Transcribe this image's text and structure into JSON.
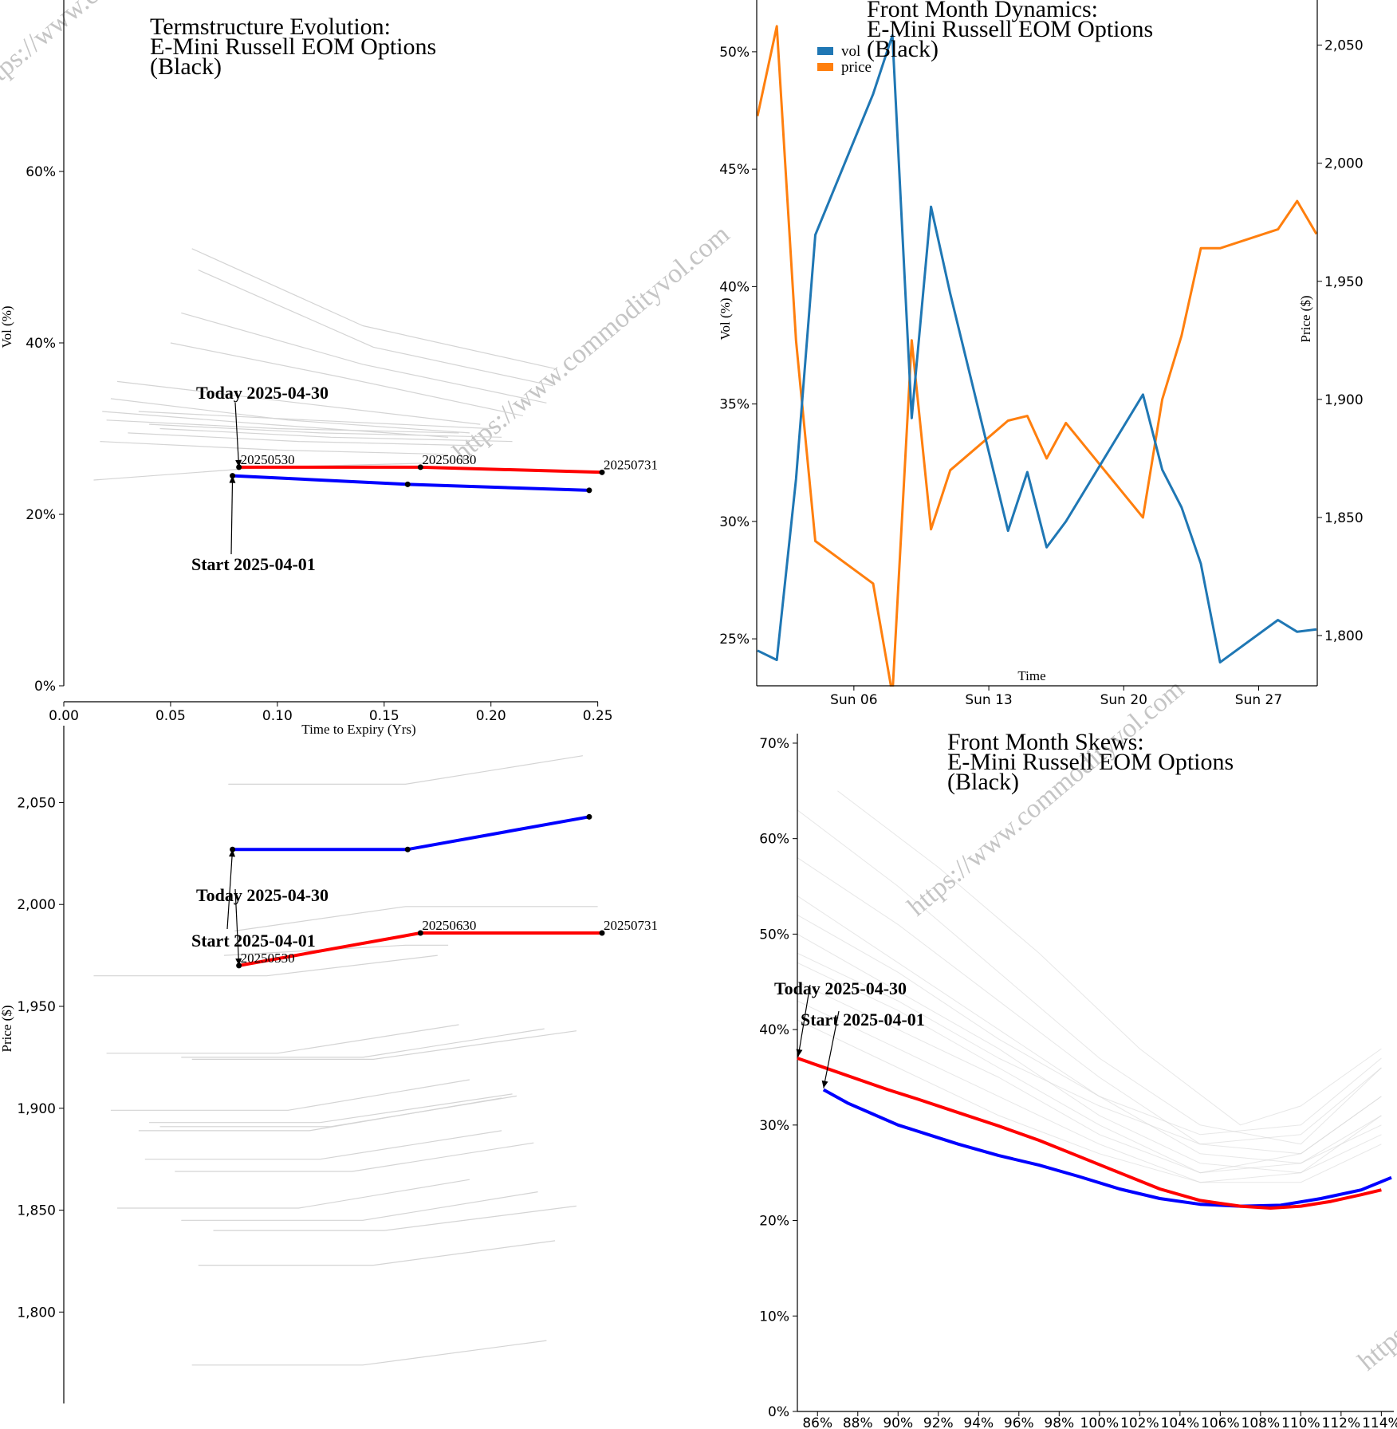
{
  "watermark": "https://www.commodityvol.com",
  "colors": {
    "start": "#0000ff",
    "today": "#ff0000",
    "history": "#d4d4d4",
    "vol": "#1f77b4",
    "price": "#ff7f0e"
  },
  "chart_data": [
    {
      "id": "term_vol",
      "type": "line",
      "title": [
        "Termstructure Evolution:",
        "E-Mini Russell EOM Options",
        "(Black)"
      ],
      "xlabel": "Time to Expiry (Yrs)",
      "ylabel": "Vol (%)",
      "xlim": [
        0,
        0.28
      ],
      "ylim": [
        0,
        80
      ],
      "xticks": [
        0.0,
        0.05,
        0.1,
        0.15,
        0.2,
        0.25
      ],
      "yticks": [
        0,
        20,
        40,
        60
      ],
      "start": {
        "label": "Start 2025-04-01",
        "x": [
          0.079,
          0.161,
          0.246
        ],
        "y": [
          24.5,
          23.5,
          22.8
        ]
      },
      "today": {
        "label": "Today 2025-04-30",
        "x": [
          0.082,
          0.167,
          0.252
        ],
        "y": [
          25.5,
          25.5,
          24.9
        ],
        "point_labels": [
          "20250530",
          "20250630",
          "20250731"
        ]
      },
      "history": [
        {
          "x": [
            0.06,
            0.14,
            0.23
          ],
          "y": [
            51,
            42,
            37
          ]
        },
        {
          "x": [
            0.063,
            0.145,
            0.229
          ],
          "y": [
            48.5,
            39.5,
            35
          ]
        },
        {
          "x": [
            0.055,
            0.14,
            0.226
          ],
          "y": [
            43.5,
            37.5,
            33
          ]
        },
        {
          "x": [
            0.05,
            0.13,
            0.215
          ],
          "y": [
            40,
            36,
            31.5
          ]
        },
        {
          "x": [
            0.025,
            0.11,
            0.195
          ],
          "y": [
            35.5,
            33,
            30.5
          ]
        },
        {
          "x": [
            0.022,
            0.105,
            0.19
          ],
          "y": [
            33.5,
            31,
            29.5
          ]
        },
        {
          "x": [
            0.02,
            0.1,
            0.185
          ],
          "y": [
            31,
            30,
            29.5
          ]
        },
        {
          "x": [
            0.018,
            0.095,
            0.18
          ],
          "y": [
            32,
            30.5,
            29
          ]
        },
        {
          "x": [
            0.035,
            0.115,
            0.2
          ],
          "y": [
            32,
            31,
            30
          ]
        },
        {
          "x": [
            0.04,
            0.12,
            0.205
          ],
          "y": [
            30.5,
            29.5,
            29
          ]
        },
        {
          "x": [
            0.045,
            0.125,
            0.21
          ],
          "y": [
            30,
            29,
            28.5
          ]
        },
        {
          "x": [
            0.03,
            0.11,
            0.195
          ],
          "y": [
            29.5,
            28.5,
            28
          ]
        },
        {
          "x": [
            0.017,
            0.1,
            0.18
          ],
          "y": [
            28.5,
            27.5,
            27
          ]
        },
        {
          "x": [
            0.014,
            0.095,
            0.175
          ],
          "y": [
            24,
            25.5,
            26
          ]
        }
      ]
    },
    {
      "id": "term_price",
      "type": "line",
      "ylabel": "Price ($)",
      "xlim": [
        0,
        0.28
      ],
      "ylim": [
        1770,
        2085
      ],
      "yticks": [
        1800,
        1850,
        1900,
        1950,
        2000,
        2050
      ],
      "start": {
        "label": "Start 2025-04-01",
        "x": [
          0.079,
          0.161,
          0.246
        ],
        "y": [
          2027,
          2027,
          2043
        ]
      },
      "today": {
        "label": "Today 2025-04-30",
        "x": [
          0.082,
          0.167,
          0.252
        ],
        "y": [
          1970,
          1986,
          1986
        ],
        "point_labels": [
          "20250530",
          "20250630",
          "20250731"
        ]
      },
      "history": [
        {
          "x": [
            0.077,
            0.16,
            0.243
          ],
          "y": [
            2059,
            2059,
            2073
          ]
        },
        {
          "x": [
            0.08,
            0.16,
            0.25
          ],
          "y": [
            1987,
            1999,
            1999
          ]
        },
        {
          "x": [
            0.075,
            0.16,
            0.18
          ],
          "y": [
            1975,
            1980,
            1980
          ]
        },
        {
          "x": [
            0.014,
            0.095,
            0.175
          ],
          "y": [
            1965,
            1965,
            1975
          ]
        },
        {
          "x": [
            0.02,
            0.1,
            0.185
          ],
          "y": [
            1927,
            1927,
            1941
          ]
        },
        {
          "x": [
            0.055,
            0.14,
            0.225
          ],
          "y": [
            1925,
            1925,
            1939
          ]
        },
        {
          "x": [
            0.06,
            0.145,
            0.24
          ],
          "y": [
            1924,
            1924,
            1938
          ]
        },
        {
          "x": [
            0.022,
            0.105,
            0.19
          ],
          "y": [
            1899,
            1899,
            1914
          ]
        },
        {
          "x": [
            0.04,
            0.12,
            0.21
          ],
          "y": [
            1893,
            1893,
            1907
          ]
        },
        {
          "x": [
            0.045,
            0.125,
            0.212
          ],
          "y": [
            1891,
            1891,
            1906
          ]
        },
        {
          "x": [
            0.035,
            0.115,
            0.205
          ],
          "y": [
            1889,
            1889,
            1905
          ]
        },
        {
          "x": [
            0.038,
            0.12,
            0.205
          ],
          "y": [
            1875,
            1875,
            1889
          ]
        },
        {
          "x": [
            0.052,
            0.135,
            0.22
          ],
          "y": [
            1869,
            1869,
            1883
          ]
        },
        {
          "x": [
            0.025,
            0.11,
            0.19
          ],
          "y": [
            1851,
            1851,
            1865
          ]
        },
        {
          "x": [
            0.055,
            0.14,
            0.222
          ],
          "y": [
            1845,
            1845,
            1859
          ]
        },
        {
          "x": [
            0.07,
            0.15,
            0.24
          ],
          "y": [
            1840,
            1840,
            1852
          ]
        },
        {
          "x": [
            0.063,
            0.145,
            0.23
          ],
          "y": [
            1823,
            1823,
            1835
          ]
        },
        {
          "x": [
            0.06,
            0.14,
            0.226
          ],
          "y": [
            1774,
            1774,
            1786
          ]
        }
      ]
    },
    {
      "id": "dynamics",
      "type": "line",
      "title": [
        "Front Month Dynamics:",
        "E-Mini Russell EOM Options",
        "(Black)"
      ],
      "xlabel": "Time",
      "ylabel": "Vol (%)",
      "ylabel2": "Price ($)",
      "xlim": [
        "2025-04-01",
        "2025-04-30"
      ],
      "ylim": [
        23,
        52
      ],
      "ylim2": [
        1775,
        2060
      ],
      "xticks": [
        {
          "date": "2025-04-06",
          "label": "Sun 06"
        },
        {
          "date": "2025-04-13",
          "label": "Sun 13"
        },
        {
          "date": "2025-04-20",
          "label": "Sun 20"
        },
        {
          "date": "2025-04-27",
          "label": "Sun 27"
        }
      ],
      "yticks": [
        25,
        30,
        35,
        40,
        45,
        50
      ],
      "yticks2": [
        1800,
        1850,
        1900,
        1950,
        2000,
        2050
      ],
      "legend": [
        "vol",
        "price"
      ],
      "series": [
        {
          "name": "vol",
          "x": [
            "2025-04-01",
            "2025-04-02",
            "2025-04-03",
            "2025-04-04",
            "2025-04-07",
            "2025-04-08",
            "2025-04-09",
            "2025-04-10",
            "2025-04-11",
            "2025-04-14",
            "2025-04-15",
            "2025-04-16",
            "2025-04-17",
            "2025-04-21",
            "2025-04-22",
            "2025-04-23",
            "2025-04-24",
            "2025-04-25",
            "2025-04-28",
            "2025-04-29",
            "2025-04-30"
          ],
          "y": [
            24.5,
            24.1,
            31.8,
            42.2,
            48.2,
            50.7,
            34.4,
            43.4,
            39.7,
            29.6,
            32.1,
            28.9,
            30.0,
            35.4,
            32.2,
            30.6,
            28.2,
            24.0,
            25.8,
            25.3,
            25.4
          ]
        },
        {
          "name": "price",
          "x": [
            "2025-04-01",
            "2025-04-02",
            "2025-04-03",
            "2025-04-04",
            "2025-04-07",
            "2025-04-08",
            "2025-04-09",
            "2025-04-10",
            "2025-04-11",
            "2025-04-14",
            "2025-04-15",
            "2025-04-16",
            "2025-04-17",
            "2025-04-21",
            "2025-04-22",
            "2025-04-23",
            "2025-04-24",
            "2025-04-25",
            "2025-04-28",
            "2025-04-29",
            "2025-04-30"
          ],
          "y": [
            2020,
            2058,
            1925,
            1840,
            1822,
            1775,
            1925,
            1845,
            1870,
            1891,
            1893,
            1875,
            1890,
            1850,
            1900,
            1927,
            1964,
            1964,
            1972,
            1984,
            1970
          ]
        }
      ]
    },
    {
      "id": "skews",
      "type": "line",
      "title": [
        "Front Month Skews:",
        "E-Mini Russell EOM Options",
        "(Black)"
      ],
      "xlim": [
        85,
        114.5
      ],
      "ylim": [
        0,
        72
      ],
      "xticks": [
        86,
        88,
        90,
        92,
        94,
        96,
        98,
        100,
        102,
        104,
        106,
        108,
        110,
        112,
        114
      ],
      "yticks": [
        0,
        10,
        20,
        30,
        40,
        50,
        60,
        70
      ],
      "start": {
        "label": "Start 2025-04-01",
        "x": [
          86.3,
          87.5,
          88.7,
          90,
          91.5,
          93,
          95,
          97,
          99,
          101,
          103,
          105,
          107,
          109,
          111,
          113,
          114.5
        ],
        "y": [
          33.7,
          32.3,
          31.2,
          30.0,
          29.0,
          28.0,
          26.8,
          25.8,
          24.6,
          23.3,
          22.3,
          21.7,
          21.5,
          21.6,
          22.3,
          23.2,
          24.5
        ]
      },
      "today": {
        "label": "Today 2025-04-30",
        "x": [
          85,
          86.5,
          88,
          89.5,
          91,
          93,
          95,
          97,
          99,
          101,
          103,
          105,
          107,
          108.5,
          110,
          111.5,
          113,
          114
        ],
        "y": [
          37.0,
          35.9,
          34.8,
          33.7,
          32.7,
          31.3,
          29.9,
          28.4,
          26.7,
          25.0,
          23.3,
          22.1,
          21.5,
          21.3,
          21.5,
          22.0,
          22.7,
          23.2
        ]
      },
      "history": [
        {
          "x": [
            87,
            92,
            97,
            102,
            107,
            110,
            114
          ],
          "y": [
            65,
            57,
            48,
            38,
            30,
            32,
            38
          ]
        },
        {
          "x": [
            85,
            90,
            95,
            100,
            105,
            110,
            114
          ],
          "y": [
            63,
            55,
            46,
            37,
            30,
            28,
            36
          ]
        },
        {
          "x": [
            85,
            90,
            95,
            100,
            105,
            110,
            114
          ],
          "y": [
            58,
            51,
            43,
            35,
            28,
            27,
            33
          ]
        },
        {
          "x": [
            85,
            90,
            95,
            100,
            105,
            110,
            114
          ],
          "y": [
            54,
            47,
            40,
            33,
            27,
            26,
            31
          ]
        },
        {
          "x": [
            85,
            90,
            95,
            100,
            105,
            110,
            114
          ],
          "y": [
            50,
            44,
            38,
            31,
            26,
            25,
            29
          ]
        },
        {
          "x": [
            85,
            90,
            95,
            100,
            105,
            110,
            114
          ],
          "y": [
            47,
            42,
            36,
            30,
            25,
            26,
            30
          ]
        },
        {
          "x": [
            85,
            90,
            95,
            100,
            105,
            110,
            114
          ],
          "y": [
            45,
            40,
            35,
            29,
            25,
            27,
            33
          ]
        },
        {
          "x": [
            85,
            90,
            95,
            100,
            105,
            110,
            114
          ],
          "y": [
            43,
            38,
            33,
            28,
            24,
            24,
            28
          ]
        },
        {
          "x": [
            85,
            90,
            95,
            100,
            105,
            110,
            114
          ],
          "y": [
            41,
            36,
            31,
            27,
            24,
            25,
            31
          ]
        },
        {
          "x": [
            85,
            90,
            95,
            100,
            105,
            110,
            114
          ],
          "y": [
            48,
            43,
            37,
            32,
            28,
            29,
            36
          ]
        },
        {
          "x": [
            85,
            90,
            95,
            100,
            105,
            110,
            114
          ],
          "y": [
            52,
            46,
            39,
            33,
            29,
            30,
            37
          ]
        }
      ]
    }
  ]
}
